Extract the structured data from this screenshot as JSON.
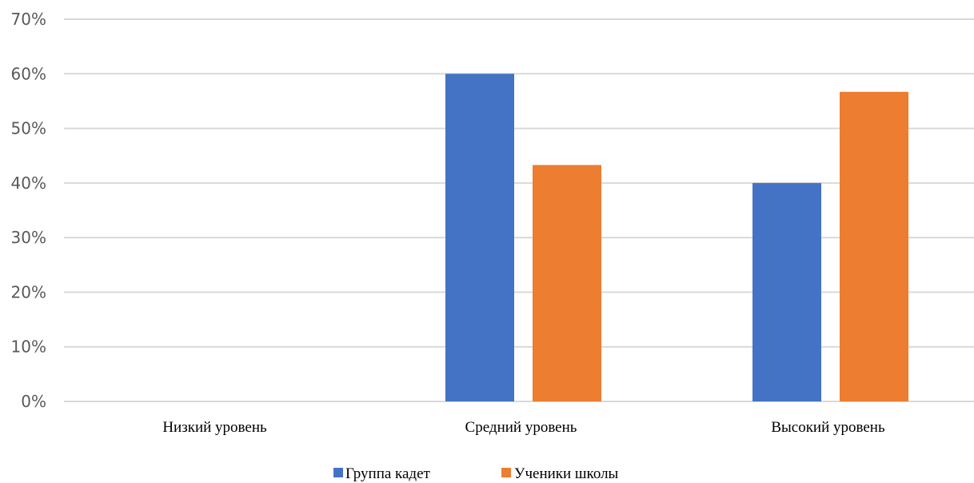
{
  "chart_data": {
    "type": "bar",
    "categories": [
      "Низкий уровень",
      "Средний уровень",
      "Высокий уровень"
    ],
    "series": [
      {
        "name": "Группа кадет",
        "values": [
          0,
          60,
          40
        ],
        "color": "#4472C4"
      },
      {
        "name": "Ученики школы",
        "values": [
          0,
          43.3,
          56.7
        ],
        "color": "#ED7D31"
      }
    ],
    "y_ticks": [
      "0%",
      "10%",
      "20%",
      "30%",
      "40%",
      "50%",
      "60%",
      "70%"
    ],
    "ylim": [
      0,
      70
    ],
    "y_unit": "%",
    "grid": true,
    "legend_position": "bottom",
    "title": "",
    "xlabel": "",
    "ylabel": ""
  }
}
